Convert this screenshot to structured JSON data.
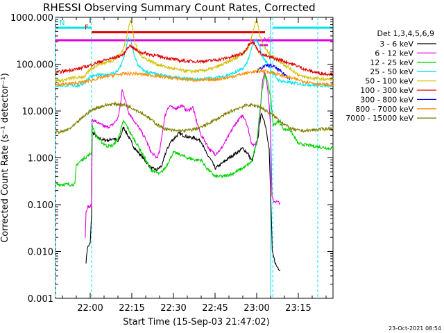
{
  "chart_data": {
    "type": "line",
    "title": "RHESSI Observing Summary Count Rates, Corrected",
    "xlabel": "Start Time (15-Sep-03 21:47:02)",
    "ylabel": "Corrected Count Rate (s⁻¹ detector⁻¹)",
    "y_scale": "log",
    "ylim": [
      0.001,
      1000
    ],
    "xlim_minutes_after_2200": [
      -12.5,
      87.5
    ],
    "y_ticks": [
      {
        "value": 1000,
        "label": "1000.000"
      },
      {
        "value": 100,
        "label": "100.000"
      },
      {
        "value": 10,
        "label": "10.000"
      },
      {
        "value": 1,
        "label": "1.000"
      },
      {
        "value": 0.1,
        "label": "0.100"
      },
      {
        "value": 0.01,
        "label": "0.010"
      },
      {
        "value": 0.001,
        "label": "0.001"
      }
    ],
    "x_ticks": [
      {
        "value": 0,
        "label": "22:00"
      },
      {
        "value": 15,
        "label": "22:15"
      },
      {
        "value": 30,
        "label": "22:30"
      },
      {
        "value": 45,
        "label": "22:45"
      },
      {
        "value": 60,
        "label": "23:00"
      },
      {
        "value": 75,
        "label": "23:15"
      }
    ],
    "legend_title": "Det 1,3,4,5,6,9",
    "legend_position": "right",
    "flags": [
      {
        "label": "N",
        "color": "#00e5ee",
        "start": -12.5,
        "end": 0.5,
        "value": 600
      },
      {
        "label": "",
        "color": "#00e5ee",
        "start": 66.0,
        "end": 87.5,
        "value": 600
      },
      {
        "label": "F",
        "color": "#e00000",
        "start": 0.5,
        "end": 63.0,
        "value": 480
      },
      {
        "label": "",
        "color": "#e000e0",
        "start": -12.5,
        "end": 87.5,
        "value": 325
      },
      {
        "label": "AG",
        "color": "#e000e0",
        "start": 61.0,
        "end": 64.0,
        "value": 255
      }
    ],
    "vlines": [
      {
        "x": -12.5,
        "color": "#00e5ee"
      },
      {
        "x": 0.5,
        "color": "#00e5ee"
      },
      {
        "x": 65.0,
        "color": "#00e5ee"
      },
      {
        "x": 65.8,
        "color": "#00e5ee"
      },
      {
        "x": 82.0,
        "color": "#00e5ee"
      }
    ],
    "series": [
      {
        "name": "3 - 6 keV",
        "color": "#000000",
        "x": [
          -1.5,
          -1,
          0,
          0.5,
          0.7,
          1.5,
          3,
          5,
          7,
          8,
          9,
          10,
          11,
          12,
          13,
          16,
          19,
          22,
          24,
          26,
          27,
          29,
          32,
          35,
          38,
          40,
          41,
          42,
          43,
          44,
          45,
          46,
          48,
          50,
          53,
          55,
          57,
          58,
          58.5,
          59.5,
          60.5,
          61.5,
          62.5,
          63.5,
          64.5,
          65.3,
          65.6,
          66,
          67,
          68.5
        ],
        "y": [
          0.006,
          0.012,
          0.015,
          0.06,
          3.5,
          3.2,
          2.6,
          2.4,
          2.4,
          2.6,
          2.5,
          2.2,
          3.0,
          4.5,
          3.5,
          1.6,
          1.0,
          0.6,
          0.55,
          0.7,
          1.2,
          2.2,
          3.3,
          2.8,
          2.6,
          2.3,
          1.6,
          1.2,
          1.0,
          0.8,
          0.6,
          0.65,
          0.8,
          1.0,
          1.3,
          1.6,
          1.2,
          0.9,
          0.9,
          1.6,
          2.8,
          8.5,
          7.0,
          4.0,
          1.5,
          0.05,
          0.01,
          0.008,
          0.005,
          0.004
        ]
      },
      {
        "name": "6 - 12 keV",
        "color": "#e000e0",
        "x": [
          -1.8,
          -1.5,
          -1,
          0,
          0.5,
          0.7,
          2,
          4,
          6,
          8,
          10,
          11,
          11.5,
          12,
          13,
          14,
          16,
          18,
          20,
          22,
          24,
          25,
          26,
          27,
          28,
          29,
          30,
          33,
          35,
          37,
          38,
          39,
          40,
          41,
          43,
          45,
          47,
          50,
          52,
          54,
          55,
          56,
          57,
          58,
          59,
          60,
          61,
          62,
          63,
          64,
          65,
          65.5,
          66,
          68.5
        ],
        "y": [
          0.02,
          0.07,
          0.09,
          0.09,
          0.1,
          6.5,
          6.0,
          5.0,
          4.5,
          5.0,
          7.0,
          15,
          28,
          24,
          14,
          9,
          6,
          4,
          2.5,
          1.3,
          1.0,
          1.3,
          3.5,
          8,
          12,
          13,
          11,
          13,
          10,
          12,
          7,
          4.5,
          3,
          2.5,
          1.5,
          1.2,
          1.5,
          3.0,
          5.0,
          7.0,
          8.0,
          6.5,
          4.0,
          2.2,
          1.8,
          2.2,
          6.0,
          40,
          70,
          30,
          5,
          0.15,
          0.12,
          0.11
        ]
      },
      {
        "name": "12 - 25 keV",
        "color": "#00d000",
        "x": [
          -12.5,
          -8,
          -5.5,
          -5,
          -3,
          -1,
          0,
          0.5,
          0.7,
          2,
          4,
          6,
          8,
          10,
          11,
          12,
          13,
          15,
          18,
          20,
          22,
          25,
          27,
          29,
          30,
          32,
          35,
          38,
          40,
          42,
          45,
          48,
          51,
          55,
          58,
          60,
          61,
          62,
          63,
          64,
          65,
          66,
          68,
          70,
          72,
          75,
          80,
          83,
          86,
          87.5
        ],
        "y": [
          0.27,
          0.27,
          0.27,
          0.7,
          0.9,
          1.1,
          1.2,
          1.3,
          5.0,
          3.0,
          2.2,
          1.8,
          1.8,
          2.5,
          4.0,
          6.0,
          5.0,
          3.0,
          1.5,
          0.9,
          0.55,
          0.45,
          0.6,
          1.0,
          1.3,
          1.2,
          1.0,
          0.9,
          0.9,
          0.6,
          0.4,
          0.4,
          0.45,
          0.6,
          0.8,
          2.0,
          8.0,
          30,
          60,
          40,
          20,
          5.0,
          6.0,
          4.0,
          4.0,
          2.0,
          1.8,
          1.7,
          1.6,
          1.6
        ]
      },
      {
        "name": "25 - 50 keV",
        "color": "#00e5ee",
        "x": [
          -12.5,
          -8,
          -4,
          -2,
          0,
          3,
          6,
          9,
          10,
          11,
          12,
          13,
          13.5,
          14,
          14.5,
          15,
          16,
          17,
          18,
          19,
          20,
          24,
          28,
          32,
          36,
          40,
          44,
          48,
          52,
          55,
          56,
          57,
          58,
          59,
          60,
          61,
          62,
          63,
          64,
          65,
          66,
          68,
          72,
          76,
          80,
          84,
          87.5
        ],
        "y": [
          35,
          35,
          35,
          40,
          55,
          58,
          60,
          65,
          75,
          90,
          130,
          220,
          330,
          350,
          330,
          250,
          150,
          100,
          85,
          75,
          70,
          60,
          55,
          50,
          48,
          48,
          50,
          55,
          65,
          80,
          95,
          130,
          200,
          300,
          330,
          250,
          150,
          120,
          100,
          80,
          60,
          45,
          40,
          38,
          36,
          35,
          35
        ]
      },
      {
        "name": "50 - 100 keV",
        "color": "#d0c000",
        "x": [
          -12.5,
          -10,
          -7,
          -4,
          -2,
          0,
          3,
          6,
          8,
          10,
          11,
          12,
          13,
          14,
          14.5,
          15,
          15.5,
          16,
          17,
          18,
          20,
          24,
          28,
          32,
          36,
          40,
          44,
          48,
          52,
          55,
          57,
          58,
          59,
          60,
          60.5,
          61,
          62,
          63,
          64,
          65,
          66,
          68,
          72,
          76,
          80,
          84,
          87.5
        ],
        "y": [
          45,
          45,
          50,
          52,
          55,
          75,
          100,
          110,
          120,
          140,
          170,
          220,
          350,
          700,
          900,
          700,
          450,
          300,
          200,
          160,
          130,
          100,
          85,
          75,
          70,
          72,
          80,
          100,
          130,
          170,
          220,
          350,
          600,
          900,
          700,
          450,
          280,
          220,
          180,
          160,
          140,
          120,
          80,
          55,
          50,
          48,
          48
        ]
      },
      {
        "name": "100 - 300 keV",
        "color": "#e00000",
        "x": [
          -12.5,
          -10,
          -7,
          -4,
          0,
          3,
          6,
          9,
          12,
          13,
          14,
          15,
          16,
          18,
          20,
          24,
          28,
          32,
          36,
          40,
          44,
          48,
          52,
          55,
          56,
          57,
          58,
          59,
          60,
          61,
          62,
          64,
          66,
          68,
          70,
          74,
          78,
          82,
          85,
          87.5
        ],
        "y": [
          65,
          70,
          75,
          80,
          95,
          110,
          125,
          140,
          160,
          200,
          250,
          240,
          210,
          180,
          170,
          150,
          135,
          120,
          115,
          115,
          120,
          130,
          150,
          170,
          200,
          260,
          300,
          280,
          220,
          180,
          160,
          145,
          135,
          125,
          115,
          95,
          75,
          65,
          62,
          62
        ]
      },
      {
        "name": "300 - 800 keV",
        "color": "#0000e0",
        "x": [
          60,
          62,
          64,
          66,
          68,
          70,
          72
        ],
        "y": [
          70,
          85,
          95,
          90,
          75,
          60,
          50
        ]
      },
      {
        "name": "800 - 7000 keV",
        "color": "#ff8c00",
        "x": [
          -12.5,
          -8,
          -4,
          0,
          4,
          8,
          12,
          16,
          20,
          25,
          30,
          35,
          40,
          45,
          50,
          54,
          58,
          62,
          66,
          70,
          74,
          78,
          82,
          86,
          87.5
        ],
        "y": [
          36,
          38,
          40,
          45,
          52,
          58,
          62,
          63,
          60,
          55,
          50,
          47,
          45,
          47,
          52,
          60,
          68,
          72,
          66,
          55,
          48,
          42,
          38,
          36,
          36
        ]
      },
      {
        "name": "7000 - 15000 keV",
        "color": "#808000",
        "x": [
          -12.5,
          -10,
          -8,
          -6,
          -4,
          -2,
          0,
          2,
          4,
          6,
          8,
          10,
          12,
          14,
          16,
          18,
          20,
          22,
          24,
          26,
          28,
          30,
          32,
          34,
          36,
          40,
          44,
          48,
          51,
          54,
          57,
          60,
          62,
          64,
          66,
          68,
          70,
          72,
          74,
          76,
          78,
          80,
          82,
          84,
          86,
          87.5
        ],
        "y": [
          3.5,
          3.6,
          4.0,
          4.8,
          6.2,
          8.0,
          10,
          11.5,
          12.5,
          13.5,
          14,
          14,
          13.5,
          12.5,
          11,
          9.5,
          8,
          6.5,
          5.2,
          4.4,
          4.0,
          3.8,
          3.8,
          3.8,
          3.9,
          4.5,
          6,
          8,
          10,
          12,
          13.5,
          13,
          11.5,
          9.5,
          8,
          6.5,
          5.2,
          4.3,
          3.9,
          3.8,
          3.8,
          3.9,
          4.0,
          4.1,
          4.2,
          4.2
        ]
      }
    ],
    "grid": false
  },
  "footer_date": "23-Oct-2021 08:54"
}
